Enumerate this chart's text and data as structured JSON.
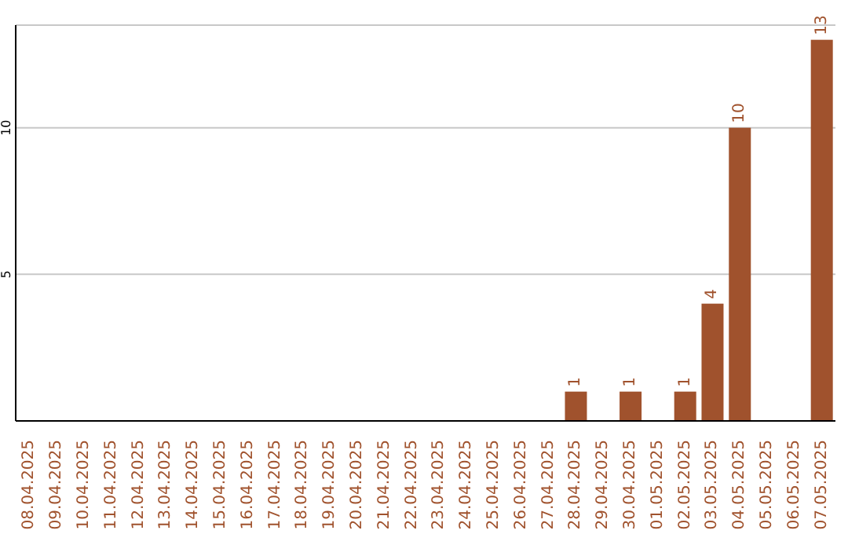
{
  "chart_data": {
    "type": "bar",
    "categories": [
      "08.04.2025",
      "09.04.2025",
      "10.04.2025",
      "11.04.2025",
      "12.04.2025",
      "13.04.2025",
      "14.04.2025",
      "15.04.2025",
      "16.04.2025",
      "17.04.2025",
      "18.04.2025",
      "19.04.2025",
      "20.04.2025",
      "21.04.2025",
      "22.04.2025",
      "23.04.2025",
      "24.04.2025",
      "25.04.2025",
      "26.04.2025",
      "27.04.2025",
      "28.04.2025",
      "29.04.2025",
      "30.04.2025",
      "01.05.2025",
      "02.05.2025",
      "03.05.2025",
      "04.05.2025",
      "05.05.2025",
      "06.05.2025",
      "07.05.2025"
    ],
    "values": [
      0,
      0,
      0,
      0,
      0,
      0,
      0,
      0,
      0,
      0,
      0,
      0,
      0,
      0,
      0,
      0,
      0,
      0,
      0,
      0,
      1,
      0,
      1,
      0,
      1,
      4,
      10,
      0,
      0,
      13
    ],
    "value_labels": [
      null,
      null,
      null,
      null,
      null,
      null,
      null,
      null,
      null,
      null,
      null,
      null,
      null,
      null,
      null,
      null,
      null,
      null,
      null,
      null,
      "1",
      null,
      "1",
      null,
      "1",
      "4",
      "10",
      null,
      null,
      "13"
    ],
    "color": "#a0522d",
    "ylim": [
      0,
      13.5
    ],
    "yticks": [
      5,
      10
    ],
    "grid": "y"
  }
}
